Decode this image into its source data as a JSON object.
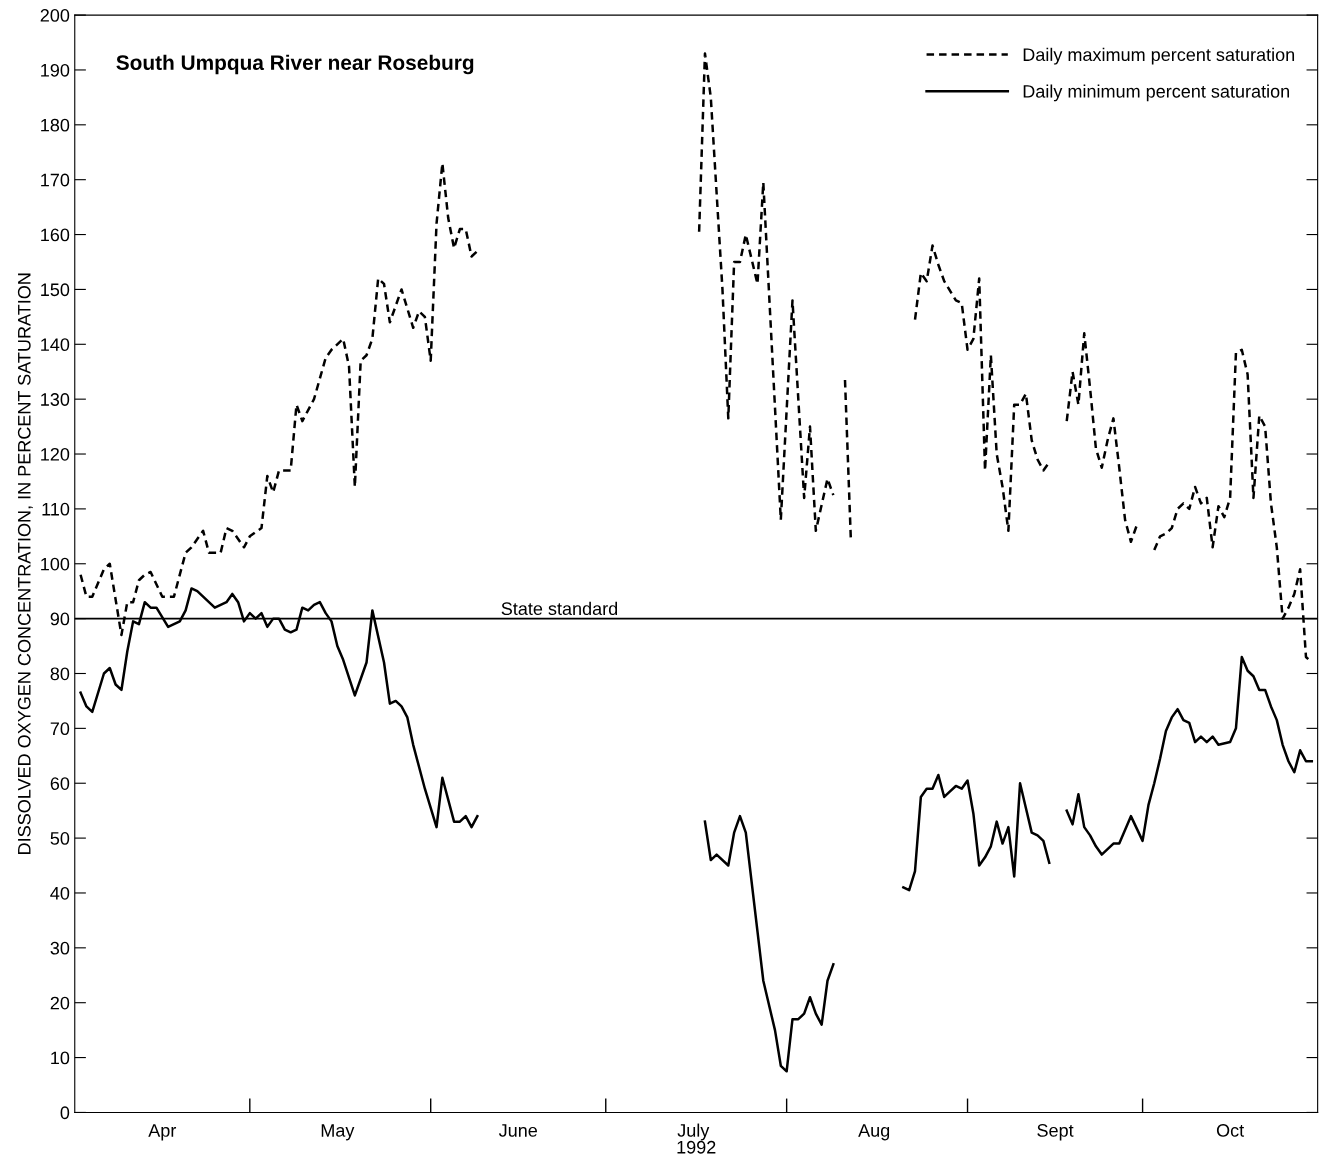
{
  "chart_data": {
    "type": "line",
    "title": "South Umpqua River near Roseburg",
    "xlabel": "1992",
    "ylabel": "DISSOLVED OXYGEN CONCENTRATION, IN PERCENT SATURATION",
    "xlim": [
      "1992-04-01",
      "1992-10-31"
    ],
    "xticks": [
      {
        "value": "1992-05-01",
        "label": null
      },
      {
        "value": "1992-06-01",
        "label": null
      },
      {
        "value": "1992-07-01",
        "label": null
      },
      {
        "value": "1992-08-01",
        "label": null
      },
      {
        "value": "1992-09-01",
        "label": null
      },
      {
        "value": "1992-10-01",
        "label": null
      },
      {
        "value": "1992-04-16",
        "label": "Apr"
      },
      {
        "value": "1992-05-16",
        "label": "May"
      },
      {
        "value": "1992-06-16",
        "label": "June"
      },
      {
        "value": "1992-07-16",
        "label": "July"
      },
      {
        "value": "1992-08-16",
        "label": "Aug"
      },
      {
        "value": "1992-09-16",
        "label": "Sept"
      },
      {
        "value": "1992-10-16",
        "label": "Oct"
      }
    ],
    "ylim": [
      0,
      200
    ],
    "yticks": [
      0,
      10,
      20,
      30,
      40,
      50,
      60,
      70,
      80,
      90,
      100,
      110,
      120,
      130,
      140,
      150,
      160,
      170,
      180,
      190,
      200
    ],
    "grid": false,
    "legend": "top right",
    "marker": "none",
    "ref_lines": [
      {
        "axis": "y",
        "value": 90,
        "label": "State standard",
        "color": "#000000",
        "line_style": "solid"
      }
    ],
    "series": [
      {
        "name": "Daily maximum percent saturation",
        "color": "#000000",
        "line_style": "dashed",
        "x": [
          "1992-04-02",
          "1992-04-03",
          "1992-04-04",
          "1992-04-06",
          "1992-04-07",
          "1992-04-09",
          "1992-04-10",
          "1992-04-11",
          "1992-04-12",
          "1992-04-13",
          "1992-04-14",
          "1992-04-16",
          "1992-04-18",
          "1992-04-20",
          "1992-04-21",
          "1992-04-23",
          "1992-04-24",
          "1992-04-26",
          "1992-04-27",
          "1992-04-28",
          "1992-04-30",
          "1992-05-01",
          "1992-05-03",
          "1992-05-04",
          "1992-05-05",
          "1992-05-06",
          "1992-05-08",
          "1992-05-09",
          "1992-05-10",
          "1992-05-12",
          "1992-05-14",
          "1992-05-15",
          "1992-05-17",
          "1992-05-18",
          "1992-05-19",
          "1992-05-20",
          "1992-05-21",
          "1992-05-22",
          "1992-05-23",
          "1992-05-24",
          "1992-05-25",
          "1992-05-27",
          "1992-05-29",
          "1992-05-30",
          "1992-05-31",
          "1992-06-01",
          "1992-06-02",
          "1992-06-03",
          "1992-06-04",
          "1992-06-05",
          "1992-06-06",
          "1992-06-07",
          "1992-06-08",
          "1992-06-09",
          "1992-06-10",
          "1992-07-17",
          "1992-07-18",
          "1992-07-19",
          "1992-07-21",
          "1992-07-22",
          "1992-07-23",
          "1992-07-24",
          "1992-07-25",
          "1992-07-27",
          "1992-07-28",
          "1992-07-31",
          "1992-08-02",
          "1992-08-04",
          "1992-08-05",
          "1992-08-06",
          "1992-08-08",
          "1992-08-09",
          "1992-08-10",
          "1992-08-11",
          "1992-08-12",
          "1992-08-13",
          "1992-08-23",
          "1992-08-24",
          "1992-08-25",
          "1992-08-26",
          "1992-08-27",
          "1992-08-28",
          "1992-08-30",
          "1992-08-31",
          "1992-09-01",
          "1992-09-02",
          "1992-09-03",
          "1992-09-04",
          "1992-09-05",
          "1992-09-06",
          "1992-09-07",
          "1992-09-08",
          "1992-09-09",
          "1992-09-10",
          "1992-09-11",
          "1992-09-12",
          "1992-09-13",
          "1992-09-14",
          "1992-09-15",
          "1992-09-16",
          "1992-09-18",
          "1992-09-19",
          "1992-09-20",
          "1992-09-21",
          "1992-09-22",
          "1992-09-23",
          "1992-09-24",
          "1992-09-25",
          "1992-09-26",
          "1992-09-27",
          "1992-09-28",
          "1992-09-29",
          "1992-09-30",
          "1992-10-01",
          "1992-10-03",
          "1992-10-04",
          "1992-10-05",
          "1992-10-06",
          "1992-10-07",
          "1992-10-08",
          "1992-10-09",
          "1992-10-10",
          "1992-10-11",
          "1992-10-12",
          "1992-10-13",
          "1992-10-14",
          "1992-10-15",
          "1992-10-16",
          "1992-10-17",
          "1992-10-18",
          "1992-10-19",
          "1992-10-20",
          "1992-10-21",
          "1992-10-22",
          "1992-10-23",
          "1992-10-24",
          "1992-10-25",
          "1992-10-26",
          "1992-10-27",
          "1992-10-28",
          "1992-10-29",
          "1992-10-30"
        ],
        "values": [
          98,
          94,
          94,
          99,
          100,
          87,
          93,
          93,
          97,
          98,
          98.5,
          94,
          94,
          102,
          103,
          106,
          102,
          102,
          106.5,
          106,
          103,
          105,
          106.5,
          116,
          113,
          117,
          117,
          129,
          126,
          130,
          137.5,
          139,
          141,
          136,
          114,
          137,
          138,
          141,
          152,
          151,
          144,
          150,
          143,
          146,
          145,
          137,
          162,
          173,
          163,
          157.5,
          161,
          161,
          156,
          157,
          null,
          160.5,
          193,
          185,
          150,
          126.5,
          155,
          155,
          160,
          151,
          169.5,
          108,
          148,
          112,
          125,
          106,
          115.5,
          112.5,
          null,
          133.5,
          104.5,
          null,
          144.5,
          153,
          151.5,
          158,
          154.5,
          151.5,
          148,
          147.5,
          139,
          141,
          152,
          117,
          138,
          120,
          114,
          106,
          129,
          129,
          131,
          122.5,
          119,
          117,
          118.5,
          null,
          126,
          135,
          129,
          142,
          132,
          121,
          117.5,
          122.5,
          126.5,
          117.5,
          108,
          104,
          107,
          null,
          102.5,
          105,
          105.5,
          106.5,
          110,
          111,
          110,
          114,
          111,
          112,
          103,
          110.5,
          108.5,
          112,
          138.5,
          139,
          134.5,
          112,
          127,
          125,
          111,
          103,
          90,
          92,
          94.5,
          99,
          83,
          82
        ]
      },
      {
        "name": "Daily minimum percent saturation",
        "color": "#000000",
        "line_style": "solid",
        "x": [
          "1992-04-02",
          "1992-04-03",
          "1992-04-04",
          "1992-04-06",
          "1992-04-07",
          "1992-04-08",
          "1992-04-09",
          "1992-04-10",
          "1992-04-11",
          "1992-04-12",
          "1992-04-13",
          "1992-04-14",
          "1992-04-15",
          "1992-04-17",
          "1992-04-19",
          "1992-04-20",
          "1992-04-21",
          "1992-04-22",
          "1992-04-25",
          "1992-04-27",
          "1992-04-28",
          "1992-04-29",
          "1992-04-30",
          "1992-05-01",
          "1992-05-02",
          "1992-05-03",
          "1992-05-04",
          "1992-05-05",
          "1992-05-06",
          "1992-05-07",
          "1992-05-08",
          "1992-05-09",
          "1992-05-10",
          "1992-05-11",
          "1992-05-12",
          "1992-05-13",
          "1992-05-14",
          "1992-05-15",
          "1992-05-16",
          "1992-05-17",
          "1992-05-19",
          "1992-05-20",
          "1992-05-21",
          "1992-05-22",
          "1992-05-24",
          "1992-05-25",
          "1992-05-26",
          "1992-05-27",
          "1992-05-28",
          "1992-05-29",
          "1992-05-31",
          "1992-06-02",
          "1992-06-03",
          "1992-06-05",
          "1992-06-06",
          "1992-06-07",
          "1992-06-08",
          "1992-06-09",
          "1992-06-10",
          "1992-07-18",
          "1992-07-19",
          "1992-07-20",
          "1992-07-22",
          "1992-07-23",
          "1992-07-24",
          "1992-07-25",
          "1992-07-27",
          "1992-07-28",
          "1992-07-30",
          "1992-07-31",
          "1992-08-01",
          "1992-08-02",
          "1992-08-03",
          "1992-08-04",
          "1992-08-05",
          "1992-08-06",
          "1992-08-07",
          "1992-08-08",
          "1992-08-09",
          "1992-08-10",
          "1992-08-21",
          "1992-08-22",
          "1992-08-23",
          "1992-08-24",
          "1992-08-25",
          "1992-08-26",
          "1992-08-27",
          "1992-08-28",
          "1992-08-29",
          "1992-08-30",
          "1992-08-31",
          "1992-09-01",
          "1992-09-02",
          "1992-09-03",
          "1992-09-04",
          "1992-09-05",
          "1992-09-06",
          "1992-09-07",
          "1992-09-08",
          "1992-09-09",
          "1992-09-10",
          "1992-09-11",
          "1992-09-12",
          "1992-09-13",
          "1992-09-14",
          "1992-09-15",
          "1992-09-16",
          "1992-09-18",
          "1992-09-19",
          "1992-09-20",
          "1992-09-21",
          "1992-09-22",
          "1992-09-23",
          "1992-09-24",
          "1992-09-25",
          "1992-09-26",
          "1992-09-27",
          "1992-09-29",
          "1992-10-01",
          "1992-10-02",
          "1992-10-03",
          "1992-10-04",
          "1992-10-05",
          "1992-10-06",
          "1992-10-07",
          "1992-10-08",
          "1992-10-09",
          "1992-10-10",
          "1992-10-11",
          "1992-10-12",
          "1992-10-13",
          "1992-10-14",
          "1992-10-16",
          "1992-10-17",
          "1992-10-18",
          "1992-10-19",
          "1992-10-20",
          "1992-10-21",
          "1992-10-22",
          "1992-10-23",
          "1992-10-24",
          "1992-10-25",
          "1992-10-26",
          "1992-10-27",
          "1992-10-28",
          "1992-10-29",
          "1992-10-30"
        ],
        "values": [
          76.5,
          74,
          73,
          80,
          81,
          78,
          77,
          84,
          89.5,
          89,
          93,
          92,
          92,
          88.5,
          89.5,
          91.5,
          95.5,
          95,
          92,
          93,
          94.5,
          93,
          89.5,
          91,
          90,
          91,
          88.5,
          90,
          90,
          88,
          87.5,
          88,
          92,
          91.5,
          92.5,
          93,
          91,
          89.5,
          85,
          82.5,
          76,
          79,
          82,
          91.5,
          82,
          74.5,
          75,
          74,
          72,
          67,
          59,
          52,
          61,
          53,
          53,
          54,
          52,
          54,
          null,
          53,
          46,
          47,
          45,
          51,
          54,
          51,
          33,
          24,
          15,
          8.5,
          7.5,
          17,
          17,
          18,
          21,
          18,
          16,
          24,
          27,
          null,
          41,
          40.5,
          44,
          57.5,
          59,
          59,
          61.5,
          57.5,
          58.5,
          59.5,
          59,
          60.5,
          54.5,
          45,
          46.5,
          48.5,
          53,
          49,
          52,
          43,
          60,
          55.5,
          51,
          50.5,
          49.5,
          45.5,
          null,
          55,
          52.5,
          58,
          52,
          50.5,
          48.5,
          47,
          48,
          49,
          49,
          54,
          49.5,
          56,
          60,
          64.5,
          69.5,
          72,
          73.5,
          71.5,
          71,
          67.5,
          68.5,
          67.5,
          68.5,
          67,
          67.5,
          70,
          83,
          80.5,
          79.5,
          77,
          77,
          74,
          71.5,
          67,
          64,
          62,
          66,
          64,
          64
        ]
      }
    ]
  }
}
